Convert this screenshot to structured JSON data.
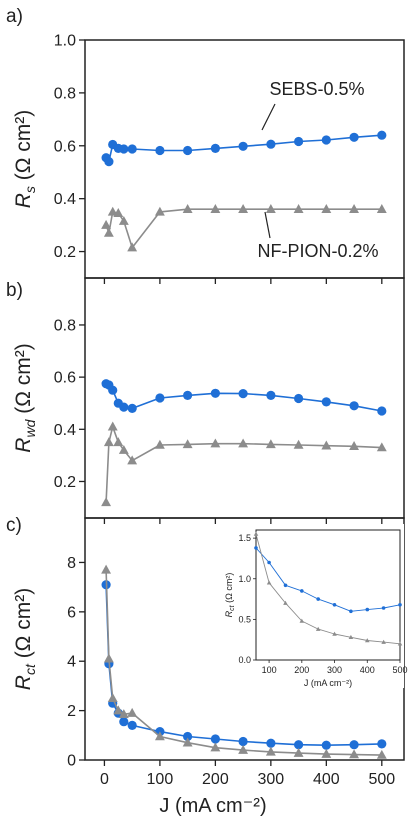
{
  "figure": {
    "xlabel": "J (mA cm⁻²)",
    "colors": {
      "blue": "#1f6fd6",
      "gray": "#8c8c8c",
      "axis": "#222222"
    }
  },
  "chart_data": [
    {
      "panel": "a)",
      "type": "line",
      "ylabel_main": "R",
      "ylabel_sub": "s",
      "ylabel_unit": " (Ω cm²)",
      "ylim": [
        0.1,
        1.0
      ],
      "yticks": [
        0.2,
        0.4,
        0.6,
        0.8,
        1.0
      ],
      "ytick_labels": [
        "0.2",
        "0.4",
        "0.6",
        "0.8",
        "1.0"
      ],
      "xlim": [
        -35,
        540
      ],
      "annotations": [
        {
          "text": "SEBS-0.5%",
          "series": 0
        },
        {
          "text": "NF-PION-0.2%",
          "series": 1
        }
      ],
      "series": [
        {
          "name": "SEBS-0.5%",
          "marker": "circle",
          "color": "#1f6fd6",
          "x": [
            3,
            8,
            15,
            25,
            35,
            50,
            100,
            150,
            200,
            250,
            300,
            350,
            400,
            450,
            500
          ],
          "y": [
            0.555,
            0.54,
            0.605,
            0.59,
            0.588,
            0.588,
            0.582,
            0.582,
            0.59,
            0.598,
            0.606,
            0.616,
            0.622,
            0.632,
            0.64
          ]
        },
        {
          "name": "NF-PION-0.2%",
          "marker": "triangle",
          "color": "#8c8c8c",
          "x": [
            3,
            8,
            15,
            25,
            35,
            50,
            100,
            150,
            200,
            250,
            300,
            350,
            400,
            450,
            500
          ],
          "y": [
            0.3,
            0.27,
            0.35,
            0.345,
            0.315,
            0.215,
            0.35,
            0.36,
            0.36,
            0.36,
            0.36,
            0.36,
            0.36,
            0.36,
            0.36
          ]
        }
      ]
    },
    {
      "panel": "b)",
      "type": "line",
      "ylabel_main": "R",
      "ylabel_sub": "wd",
      "ylabel_unit": " (Ω cm²)",
      "ylim": [
        0.06,
        0.98
      ],
      "yticks": [
        0.2,
        0.4,
        0.6,
        0.8
      ],
      "ytick_labels": [
        "0.2",
        "0.4",
        "0.6",
        "0.8"
      ],
      "xlim": [
        -35,
        540
      ],
      "series": [
        {
          "marker": "circle",
          "color": "#1f6fd6",
          "x": [
            3,
            8,
            15,
            25,
            35,
            50,
            100,
            150,
            200,
            250,
            300,
            350,
            400,
            450,
            500
          ],
          "y": [
            0.575,
            0.57,
            0.55,
            0.5,
            0.485,
            0.48,
            0.52,
            0.53,
            0.538,
            0.537,
            0.53,
            0.518,
            0.505,
            0.49,
            0.47
          ]
        },
        {
          "marker": "triangle",
          "color": "#8c8c8c",
          "x": [
            3,
            8,
            15,
            25,
            35,
            50,
            100,
            150,
            200,
            250,
            300,
            350,
            400,
            450,
            500
          ],
          "y": [
            0.12,
            0.35,
            0.41,
            0.35,
            0.32,
            0.28,
            0.34,
            0.342,
            0.345,
            0.345,
            0.342,
            0.34,
            0.337,
            0.335,
            0.33
          ]
        }
      ]
    },
    {
      "panel": "c)",
      "type": "line",
      "ylabel_main": "R",
      "ylabel_sub": "ct",
      "ylabel_unit": " (Ω cm²)",
      "ylim": [
        0,
        9.8
      ],
      "yticks": [
        0,
        2,
        4,
        6,
        8
      ],
      "ytick_labels": [
        "0",
        "2",
        "4",
        "6",
        "8"
      ],
      "xlim": [
        -35,
        540
      ],
      "xticks": [
        0,
        100,
        200,
        300,
        400,
        500
      ],
      "xtick_labels": [
        "0",
        "100",
        "200",
        "300",
        "400",
        "500"
      ],
      "series": [
        {
          "marker": "circle",
          "color": "#1f6fd6",
          "x": [
            3,
            8,
            15,
            25,
            35,
            50,
            100,
            150,
            200,
            250,
            300,
            350,
            400,
            450,
            500
          ],
          "y": [
            7.1,
            3.9,
            2.3,
            1.9,
            1.55,
            1.4,
            1.15,
            0.95,
            0.85,
            0.75,
            0.68,
            0.62,
            0.6,
            0.62,
            0.65
          ]
        },
        {
          "marker": "triangle",
          "color": "#8c8c8c",
          "x": [
            3,
            8,
            15,
            25,
            35,
            50,
            100,
            150,
            200,
            250,
            300,
            350,
            400,
            450,
            500
          ],
          "y": [
            7.7,
            4.1,
            2.5,
            2.0,
            1.85,
            1.9,
            0.95,
            0.7,
            0.5,
            0.4,
            0.33,
            0.28,
            0.24,
            0.22,
            0.2
          ]
        }
      ],
      "inset": {
        "type": "line",
        "ylabel_main": "R",
        "ylabel_sub": "ct",
        "ylabel_unit": " (Ω cm²)",
        "xlabel": "J (mA cm⁻²)",
        "xlim": [
          60,
          500
        ],
        "ylim": [
          0,
          1.6
        ],
        "xticks": [
          100,
          200,
          300,
          400,
          500
        ],
        "xtick_labels": [
          "100",
          "200",
          "300",
          "400",
          "500"
        ],
        "yticks": [
          0.0,
          0.5,
          1.0,
          1.5
        ],
        "ytick_labels": [
          "0.0",
          "0.5",
          "1.0",
          "1.5"
        ],
        "series": [
          {
            "marker": "circle",
            "color": "#1f6fd6",
            "x": [
              60,
              100,
              150,
              200,
              250,
              300,
              350,
              400,
              450,
              500
            ],
            "y": [
              1.38,
              1.2,
              0.92,
              0.85,
              0.75,
              0.68,
              0.6,
              0.62,
              0.64,
              0.68
            ]
          },
          {
            "marker": "triangle",
            "color": "#8c8c8c",
            "x": [
              60,
              100,
              150,
              200,
              250,
              300,
              350,
              400,
              450,
              500
            ],
            "y": [
              1.55,
              0.95,
              0.7,
              0.48,
              0.38,
              0.32,
              0.28,
              0.24,
              0.22,
              0.2
            ]
          }
        ]
      }
    }
  ]
}
